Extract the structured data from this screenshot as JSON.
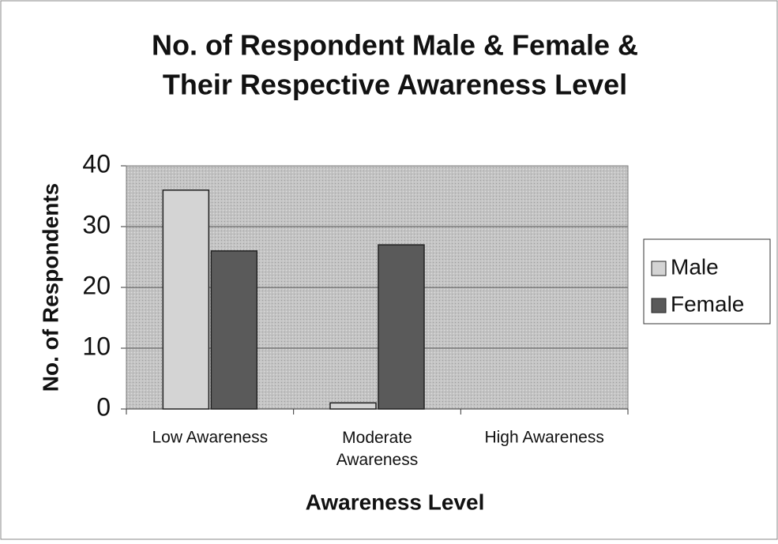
{
  "chart_data": {
    "type": "bar",
    "title": "No. of Respondent Male & Female &",
    "subtitle": "Their Respective Awareness Level",
    "x_label": "Awareness Level",
    "y_label": "No. of Respondents",
    "categories": [
      "Low Awareness",
      "Moderate Awareness",
      "High Awareness"
    ],
    "series": [
      {
        "name": "Male",
        "color": "#d4d4d4",
        "values": [
          36,
          1,
          0
        ]
      },
      {
        "name": "Female",
        "color": "#5a5a5a",
        "values": [
          26,
          27,
          0
        ]
      }
    ],
    "ylim": [
      0,
      40
    ],
    "yticks": [
      0,
      10,
      20,
      30,
      40
    ],
    "grid": true,
    "legend": "right"
  }
}
